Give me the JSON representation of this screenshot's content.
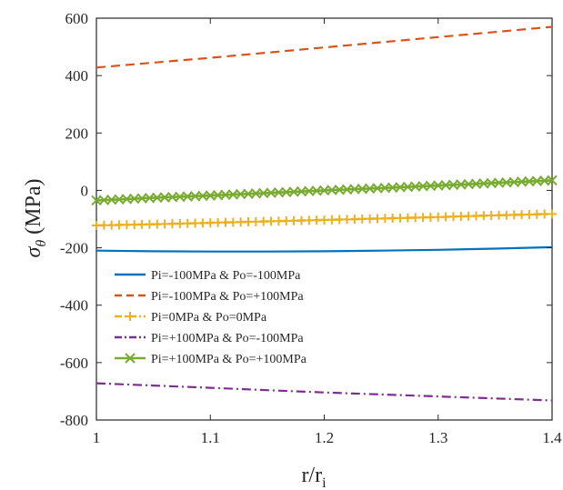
{
  "chart_data": {
    "type": "line",
    "xlabel": "r/r",
    "xlabel_subscript": "i",
    "ylabel_symbol": "σ",
    "ylabel_subscript": "θ",
    "ylabel_unit": "(MPa)",
    "xlim": [
      1,
      1.4
    ],
    "ylim": [
      -800,
      600
    ],
    "x_ticks": [
      1,
      1.1,
      1.2,
      1.3,
      1.4
    ],
    "x_tick_labels": [
      "1",
      "1.1",
      "1.2",
      "1.3",
      "1.4"
    ],
    "y_ticks": [
      -800,
      -600,
      -400,
      -200,
      0,
      200,
      400,
      600
    ],
    "y_tick_labels": [
      "-800",
      "-600",
      "-400",
      "-200",
      "0",
      "200",
      "400",
      "600"
    ],
    "grid": false,
    "legend_position": "lower-left",
    "x": [
      1.0,
      1.05,
      1.1,
      1.15,
      1.2,
      1.25,
      1.3,
      1.35,
      1.4
    ],
    "series": [
      {
        "name": "Pi=-100MPa & Po=-100MPa",
        "color": "#0072bd",
        "style": "solid",
        "marker": "none",
        "values": [
          -210,
          -212,
          -213,
          -213,
          -212,
          -210,
          -207,
          -203,
          -198
        ]
      },
      {
        "name": "Pi=-100MPa & Po=+100MPa",
        "color": "#d95319",
        "style": "dashed",
        "marker": "none",
        "values": [
          428,
          445,
          462,
          480,
          498,
          516,
          534,
          552,
          570
        ]
      },
      {
        "name": "Pi=0MPa & Po=0MPa",
        "color": "#edb120",
        "style": "dashdot",
        "marker": "plus",
        "values": [
          -122,
          -118,
          -113,
          -108,
          -103,
          -98,
          -93,
          -87,
          -82
        ]
      },
      {
        "name": "Pi=+100MPa & Po=-100MPa",
        "color": "#7e2f8e",
        "style": "dashdot",
        "marker": "none",
        "values": [
          -672,
          -680,
          -688,
          -696,
          -704,
          -711,
          -718,
          -725,
          -732
        ]
      },
      {
        "name": "Pi=+100MPa & Po=+100MPa",
        "color": "#77ac30",
        "style": "solid",
        "marker": "x",
        "values": [
          -35,
          -26,
          -18,
          -9,
          0,
          8,
          17,
          26,
          35
        ]
      }
    ]
  }
}
